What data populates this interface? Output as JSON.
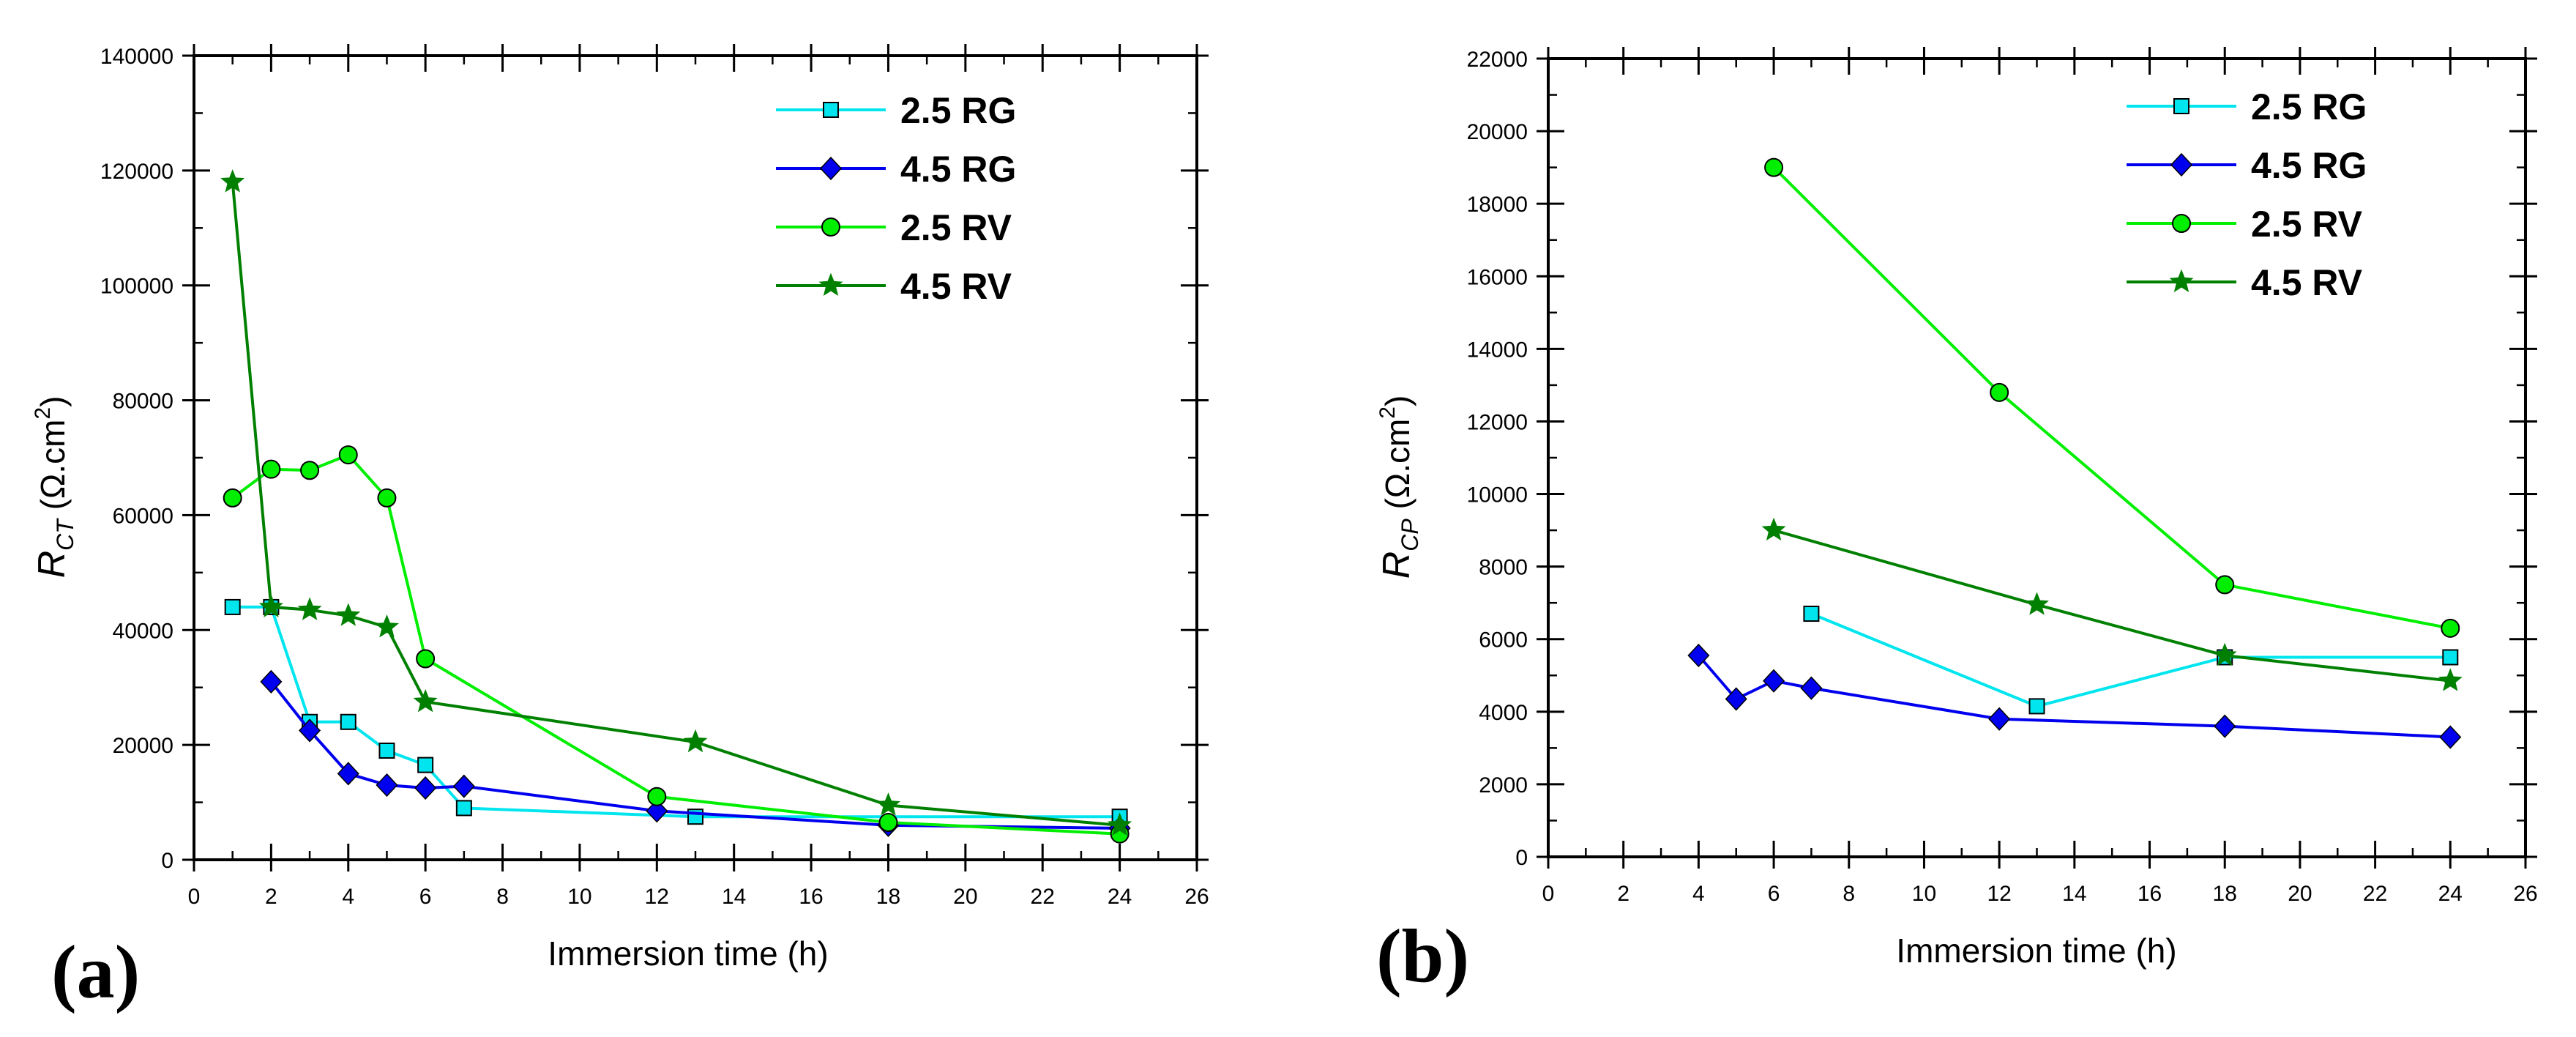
{
  "figure": {
    "panel_a_label": "(a)",
    "panel_b_label": "(b)"
  },
  "chart_data": [
    {
      "type": "line",
      "panel": "(a)",
      "xlabel": "Immersion time (h)",
      "ylabel": {
        "main": "R",
        "sub": "CT",
        "unit_pre": " (Ω.cm",
        "unit_sup": "2",
        "unit_post": ")"
      },
      "xlim": [
        0,
        26
      ],
      "ylim": [
        0,
        140000
      ],
      "xticks": [
        0,
        2,
        4,
        6,
        8,
        10,
        12,
        14,
        16,
        18,
        20,
        22,
        24,
        26
      ],
      "yticks": [
        0,
        20000,
        40000,
        60000,
        80000,
        100000,
        120000,
        140000
      ],
      "legend_position": "top-right",
      "series": [
        {
          "name": "2.5 RG",
          "color": "#00e5ee",
          "marker": "square",
          "points": [
            [
              1,
              44000
            ],
            [
              2,
              44000
            ],
            [
              3,
              24000
            ],
            [
              4,
              24000
            ],
            [
              5,
              19000
            ],
            [
              6,
              16500
            ],
            [
              7,
              9000
            ],
            [
              13,
              7500
            ],
            [
              24,
              7500
            ]
          ]
        },
        {
          "name": "4.5 RG",
          "color": "#0000ee",
          "marker": "diamond",
          "points": [
            [
              2,
              31000
            ],
            [
              3,
              22500
            ],
            [
              4,
              15000
            ],
            [
              5,
              13000
            ],
            [
              6,
              12500
            ],
            [
              7,
              12800
            ],
            [
              12,
              8500
            ],
            [
              18,
              6000
            ],
            [
              24,
              5500
            ]
          ]
        },
        {
          "name": "2.5 RV",
          "color": "#00ee00",
          "marker": "circle",
          "points": [
            [
              1,
              63000
            ],
            [
              2,
              68000
            ],
            [
              3,
              67800
            ],
            [
              4,
              70500
            ],
            [
              5,
              63000
            ],
            [
              6,
              35000
            ],
            [
              12,
              11000
            ],
            [
              18,
              6500
            ],
            [
              24,
              4500
            ]
          ]
        },
        {
          "name": "4.5 RV",
          "color": "#008000",
          "marker": "star",
          "points": [
            [
              1,
              118000
            ],
            [
              2,
              44000
            ],
            [
              3,
              43500
            ],
            [
              4,
              42500
            ],
            [
              5,
              40500
            ],
            [
              6,
              27500
            ],
            [
              13,
              20500
            ],
            [
              18,
              9500
            ],
            [
              24,
              6000
            ]
          ]
        }
      ]
    },
    {
      "type": "line",
      "panel": "(b)",
      "xlabel": "Immersion time (h)",
      "ylabel": {
        "main": "R",
        "sub": "CP",
        "unit_pre": " (Ω.cm",
        "unit_sup": "2",
        "unit_post": ")"
      },
      "xlim": [
        0,
        26
      ],
      "ylim": [
        0,
        22000
      ],
      "xticks": [
        0,
        2,
        4,
        6,
        8,
        10,
        12,
        14,
        16,
        18,
        20,
        22,
        24,
        26
      ],
      "yticks": [
        0,
        2000,
        4000,
        6000,
        8000,
        10000,
        12000,
        14000,
        16000,
        18000,
        20000,
        22000
      ],
      "legend_position": "top-right",
      "series": [
        {
          "name": "2.5 RG",
          "color": "#00e5ee",
          "marker": "square",
          "points": [
            [
              7,
              6700
            ],
            [
              13,
              4150
            ],
            [
              18,
              5500
            ],
            [
              24,
              5500
            ]
          ]
        },
        {
          "name": "4.5 RG",
          "color": "#0000ee",
          "marker": "diamond",
          "points": [
            [
              4,
              5550
            ],
            [
              5,
              4350
            ],
            [
              6,
              4850
            ],
            [
              7,
              4650
            ],
            [
              12,
              3800
            ],
            [
              18,
              3600
            ],
            [
              24,
              3300
            ]
          ]
        },
        {
          "name": "2.5 RV",
          "color": "#00ee00",
          "marker": "circle",
          "points": [
            [
              6,
              19000
            ],
            [
              12,
              12800
            ],
            [
              18,
              7500
            ],
            [
              24,
              6300
            ]
          ]
        },
        {
          "name": "4.5 RV",
          "color": "#008000",
          "marker": "star",
          "points": [
            [
              6,
              9000
            ],
            [
              13,
              6950
            ],
            [
              18,
              5550
            ],
            [
              24,
              4850
            ]
          ]
        }
      ]
    }
  ]
}
